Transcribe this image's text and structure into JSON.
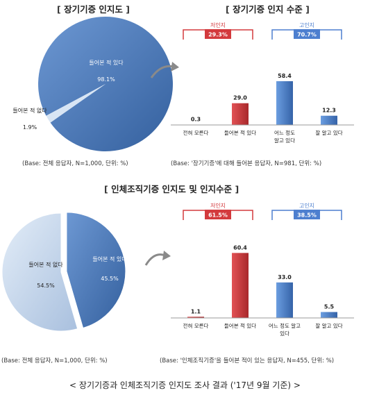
{
  "top": {
    "pie": {
      "title": "장기기증 인지도",
      "heard": {
        "label": "들어본 적 있다",
        "value": 98.1,
        "value_label": "98.1%",
        "color": "#4f7fbf"
      },
      "not_heard": {
        "label": "들어본 적 없다",
        "value": 1.9,
        "value_label": "1.9%",
        "color": "#c9dcf0"
      },
      "base": "(Base: 전체 응답자, N=1,000, 단위: %)"
    },
    "bars": {
      "title": "장기기증 인지 수준",
      "low_group": {
        "label": "저인지",
        "value": "29.3%"
      },
      "high_group": {
        "label": "고인지",
        "value": "70.7%"
      },
      "base": "(Base: '장기기증'에 대해 들어본 응답자, N=981, 단위: %)"
    }
  },
  "bottom": {
    "title": "인체조직기증 인지도 및 인지수준",
    "pie": {
      "heard": {
        "label": "들어본 적 있다",
        "value": 45.5,
        "value_label": "45.5%",
        "color": "#3f6fae"
      },
      "not_heard": {
        "label": "들어본 적 없다",
        "value": 54.5,
        "value_label": "54.5%",
        "color": "#c6d6ea"
      },
      "base": "(Base: 전체 응답자, N=1,000, 단위: %)"
    },
    "bars": {
      "low_group": {
        "label": "저인지",
        "value": "61.5%"
      },
      "high_group": {
        "label": "고인지",
        "value": "38.5%"
      },
      "base": "(Base: '인체조직기증'을 들어본 적이 있는 응답자, N=455, 단위: %)"
    }
  },
  "caption": "< 장기기증과 인체조직기증 인지도 조사 결과 ('17년 9월 기준) >",
  "chart_data": [
    {
      "type": "pie",
      "title": "장기기증 인지도",
      "labels": [
        "들어본 적 있다",
        "들어본 적 없다"
      ],
      "values": [
        98.1,
        1.9
      ],
      "colors": [
        "#4f7fbf",
        "#c9dcf0"
      ]
    },
    {
      "type": "bar",
      "title": "장기기증 인지 수준",
      "categories": [
        "전혀 모른다",
        "들어본 적 있다",
        "어느 정도 알고 있다",
        "잘 알고 있다"
      ],
      "values": [
        0.3,
        29.0,
        58.4,
        12.3
      ],
      "colors": [
        "#c8383b",
        "#c8383b",
        "#4f84cf",
        "#4f84cf"
      ],
      "groups": [
        {
          "label": "저인지",
          "value": 29.3
        },
        {
          "label": "고인지",
          "value": 70.7
        }
      ],
      "ylim": [
        0,
        70
      ]
    },
    {
      "type": "pie",
      "title": "인체조직기증 인지도 및 인지수준",
      "labels": [
        "들어본 적 있다",
        "들어본 적 없다"
      ],
      "values": [
        45.5,
        54.5
      ],
      "colors": [
        "#3f6fae",
        "#c6d6ea"
      ]
    },
    {
      "type": "bar",
      "categories": [
        "전혀 모른다",
        "들어본 적 있다",
        "어느 정도 알고 있다",
        "잘 알고 있다"
      ],
      "values": [
        1.1,
        60.4,
        33.0,
        5.5
      ],
      "colors": [
        "#c8383b",
        "#c8383b",
        "#4f84cf",
        "#4f84cf"
      ],
      "groups": [
        {
          "label": "저인지",
          "value": 61.5
        },
        {
          "label": "고인지",
          "value": 38.5
        }
      ],
      "ylim": [
        0,
        70
      ]
    }
  ]
}
